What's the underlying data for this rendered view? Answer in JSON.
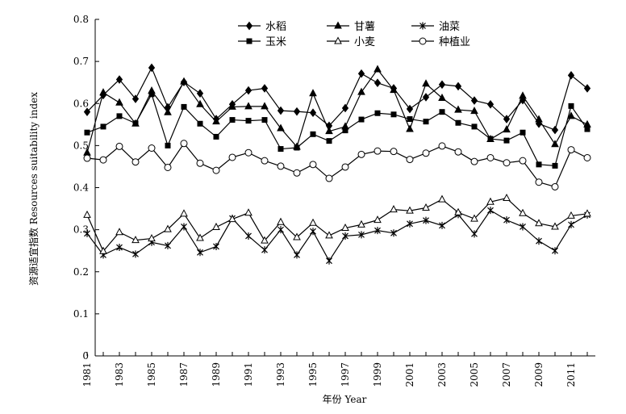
{
  "chart_data": {
    "type": "line",
    "xlabel": "年份 Year",
    "ylabel": "资源适宜指数 Resources suitability index",
    "xlim": [
      1981,
      2012
    ],
    "ylim": [
      0,
      0.8
    ],
    "x": [
      1981,
      1982,
      1983,
      1984,
      1985,
      1986,
      1987,
      1988,
      1989,
      1990,
      1991,
      1992,
      1993,
      1994,
      1995,
      1996,
      1997,
      1998,
      1999,
      2000,
      2001,
      2002,
      2003,
      2004,
      2005,
      2006,
      2007,
      2008,
      2009,
      2010,
      2011,
      2012
    ],
    "x_tick_labels": [
      "1981",
      "1983",
      "1985",
      "1987",
      "1989",
      "1991",
      "1993",
      "1995",
      "1997",
      "1999",
      "2001",
      "2003",
      "2005",
      "2007",
      "2009",
      "2011"
    ],
    "y_tick_labels": [
      "0",
      "0.1",
      "0.2",
      "0.3",
      "0.4",
      "0.5",
      "0.6",
      "0.7",
      "0.8"
    ],
    "legend_position": "top-center",
    "series": [
      {
        "name": "水稻",
        "marker": "diamond",
        "values": [
          0.58,
          0.62,
          0.657,
          0.611,
          0.685,
          0.591,
          0.651,
          0.624,
          0.563,
          0.598,
          0.631,
          0.636,
          0.583,
          0.581,
          0.578,
          0.547,
          0.589,
          0.671,
          0.649,
          0.636,
          0.587,
          0.615,
          0.645,
          0.641,
          0.607,
          0.598,
          0.563,
          0.608,
          0.552,
          0.537,
          0.667,
          0.636
        ]
      },
      {
        "name": "甘薯",
        "marker": "triangle-filled",
        "values": [
          0.483,
          0.626,
          0.602,
          0.552,
          0.63,
          0.579,
          0.652,
          0.598,
          0.557,
          0.592,
          0.593,
          0.593,
          0.541,
          0.497,
          0.624,
          0.534,
          0.545,
          0.627,
          0.681,
          0.632,
          0.539,
          0.647,
          0.613,
          0.585,
          0.582,
          0.515,
          0.538,
          0.618,
          0.562,
          0.503,
          0.57,
          0.55
        ]
      },
      {
        "name": "油菜",
        "marker": "star",
        "values": [
          0.291,
          0.24,
          0.258,
          0.242,
          0.27,
          0.262,
          0.307,
          0.246,
          0.26,
          0.327,
          0.285,
          0.252,
          0.3,
          0.24,
          0.296,
          0.226,
          0.285,
          0.288,
          0.298,
          0.292,
          0.314,
          0.322,
          0.31,
          0.336,
          0.29,
          0.346,
          0.323,
          0.307,
          0.273,
          0.25,
          0.312,
          0.335
        ]
      },
      {
        "name": "玉米",
        "marker": "square",
        "values": [
          0.531,
          0.545,
          0.57,
          0.553,
          0.622,
          0.5,
          0.592,
          0.552,
          0.521,
          0.561,
          0.559,
          0.561,
          0.492,
          0.495,
          0.527,
          0.511,
          0.536,
          0.562,
          0.577,
          0.574,
          0.563,
          0.557,
          0.58,
          0.554,
          0.545,
          0.516,
          0.512,
          0.531,
          0.455,
          0.452,
          0.594,
          0.539
        ]
      },
      {
        "name": "小麦",
        "marker": "triangle-open",
        "values": [
          0.335,
          0.249,
          0.294,
          0.275,
          0.279,
          0.301,
          0.338,
          0.28,
          0.306,
          0.325,
          0.34,
          0.274,
          0.318,
          0.282,
          0.316,
          0.286,
          0.304,
          0.312,
          0.323,
          0.348,
          0.345,
          0.352,
          0.372,
          0.341,
          0.326,
          0.366,
          0.375,
          0.339,
          0.315,
          0.307,
          0.333,
          0.338
        ]
      },
      {
        "name": "种植业",
        "marker": "circle",
        "values": [
          0.47,
          0.466,
          0.498,
          0.461,
          0.494,
          0.448,
          0.505,
          0.458,
          0.441,
          0.472,
          0.483,
          0.464,
          0.451,
          0.435,
          0.455,
          0.422,
          0.449,
          0.479,
          0.487,
          0.486,
          0.467,
          0.482,
          0.499,
          0.485,
          0.462,
          0.471,
          0.459,
          0.464,
          0.413,
          0.402,
          0.49,
          0.471
        ]
      }
    ]
  }
}
